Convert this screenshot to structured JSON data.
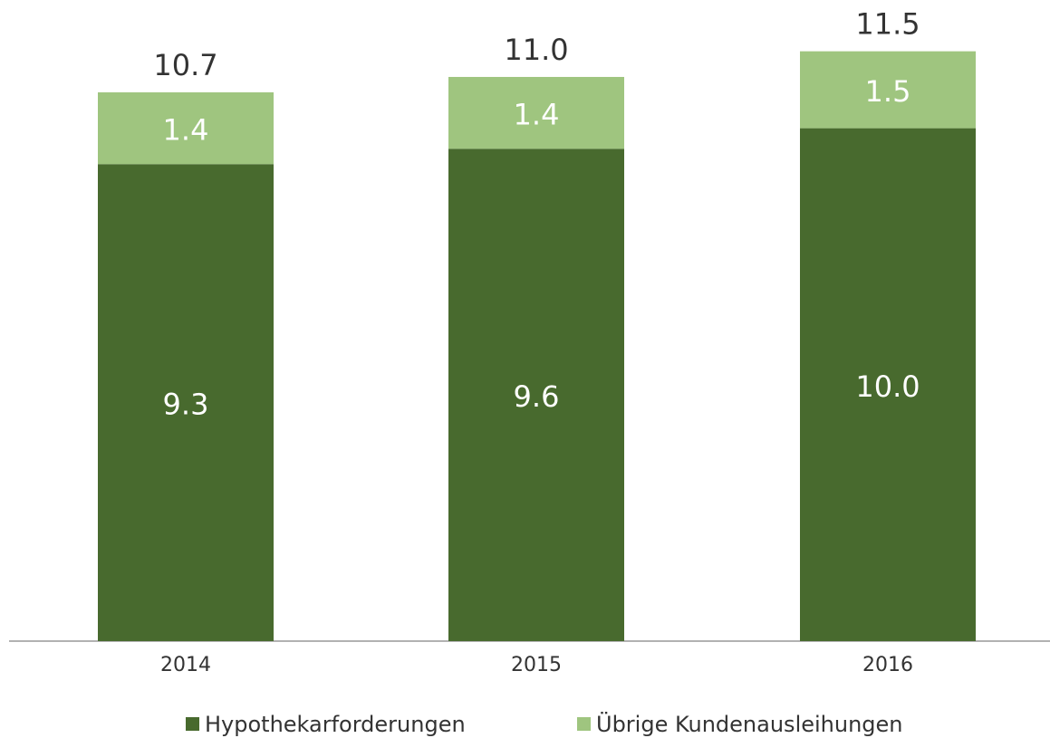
{
  "chart_data": {
    "type": "stacked_bar",
    "categories": [
      "2014",
      "2015",
      "2016"
    ],
    "series": [
      {
        "name": "Hypothekarforderungen",
        "color": "#486a2e",
        "values": [
          9.3,
          9.6,
          10.0
        ],
        "value_labels": [
          "9.3",
          "9.6",
          "10.0"
        ]
      },
      {
        "name": "Übrige Kundenausleihungen",
        "color": "#9fc57f",
        "values": [
          1.4,
          1.4,
          1.5
        ],
        "value_labels": [
          "1.4",
          "1.4",
          "1.5"
        ]
      }
    ],
    "totals": [
      10.7,
      11.0,
      11.5
    ],
    "total_labels": [
      "10.7",
      "11.0",
      "11.5"
    ],
    "ylim": [
      0,
      12.5
    ],
    "legend": "bottom"
  }
}
